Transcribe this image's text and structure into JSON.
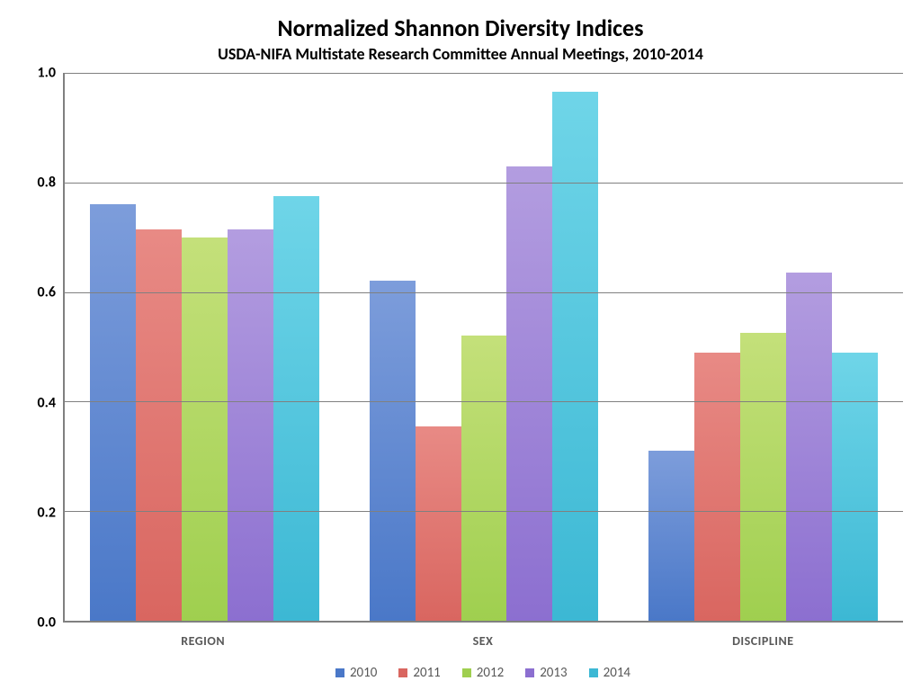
{
  "chart": {
    "type": "bar",
    "title": "Normalized Shannon Diversity Indices",
    "title_fontsize": 26,
    "subtitle": "USDA-NIFA Multistate Research Committee Annual Meetings, 2010-2014",
    "subtitle_fontsize": 18,
    "background_color": "#ffffff",
    "axis_color": "#808080",
    "grid_color": "#808080",
    "ylim": [
      0.0,
      1.0
    ],
    "ytick_step": 0.2,
    "yticks": [
      "0.0",
      "0.2",
      "0.4",
      "0.6",
      "0.8",
      "1.0"
    ],
    "ytick_fontsize": 16,
    "categories": [
      "REGION",
      "SEX",
      "DISCIPLINE"
    ],
    "category_fontsize": 14,
    "series": [
      {
        "name": "2010",
        "color_top": "#7d9ddb",
        "color_bottom": "#4a78c8",
        "values": [
          0.76,
          0.62,
          0.31
        ]
      },
      {
        "name": "2011",
        "color_top": "#e88a85",
        "color_bottom": "#d96660",
        "values": [
          0.715,
          0.355,
          0.49
        ]
      },
      {
        "name": "2012",
        "color_top": "#c4e07a",
        "color_bottom": "#9fcf4f",
        "values": [
          0.7,
          0.52,
          0.525
        ]
      },
      {
        "name": "2013",
        "color_top": "#b39de0",
        "color_bottom": "#8c6fd0",
        "values": [
          0.715,
          0.83,
          0.635
        ]
      },
      {
        "name": "2014",
        "color_top": "#6fd5e8",
        "color_bottom": "#3cb8d4",
        "values": [
          0.775,
          0.965,
          0.49
        ]
      }
    ],
    "legend_fontsize": 15
  }
}
